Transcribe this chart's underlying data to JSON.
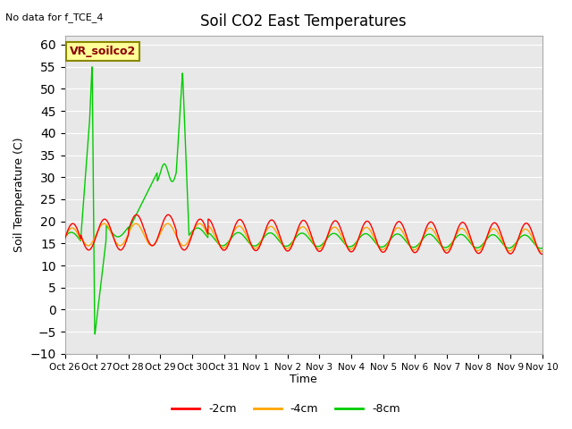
{
  "title": "Soil CO2 East Temperatures",
  "ylabel": "Soil Temperature (C)",
  "xlabel": "Time",
  "no_data_text": "No data for f_TCE_4",
  "legend_label": "VR_soilco2",
  "ylim": [
    -10,
    62
  ],
  "yticks": [
    -10,
    -5,
    0,
    5,
    10,
    15,
    20,
    25,
    30,
    35,
    40,
    45,
    50,
    55,
    60
  ],
  "line_colors": {
    "2cm": "#ff0000",
    "4cm": "#ffa500",
    "8cm": "#00cc00"
  },
  "legend_entries": [
    {
      "label": "-2cm",
      "color": "#ff0000"
    },
    {
      "label": "-4cm",
      "color": "#ffa500"
    },
    {
      "label": "-8cm",
      "color": "#00cc00"
    }
  ],
  "bg_color": "#e8e8e8",
  "fig_color": "#ffffff"
}
